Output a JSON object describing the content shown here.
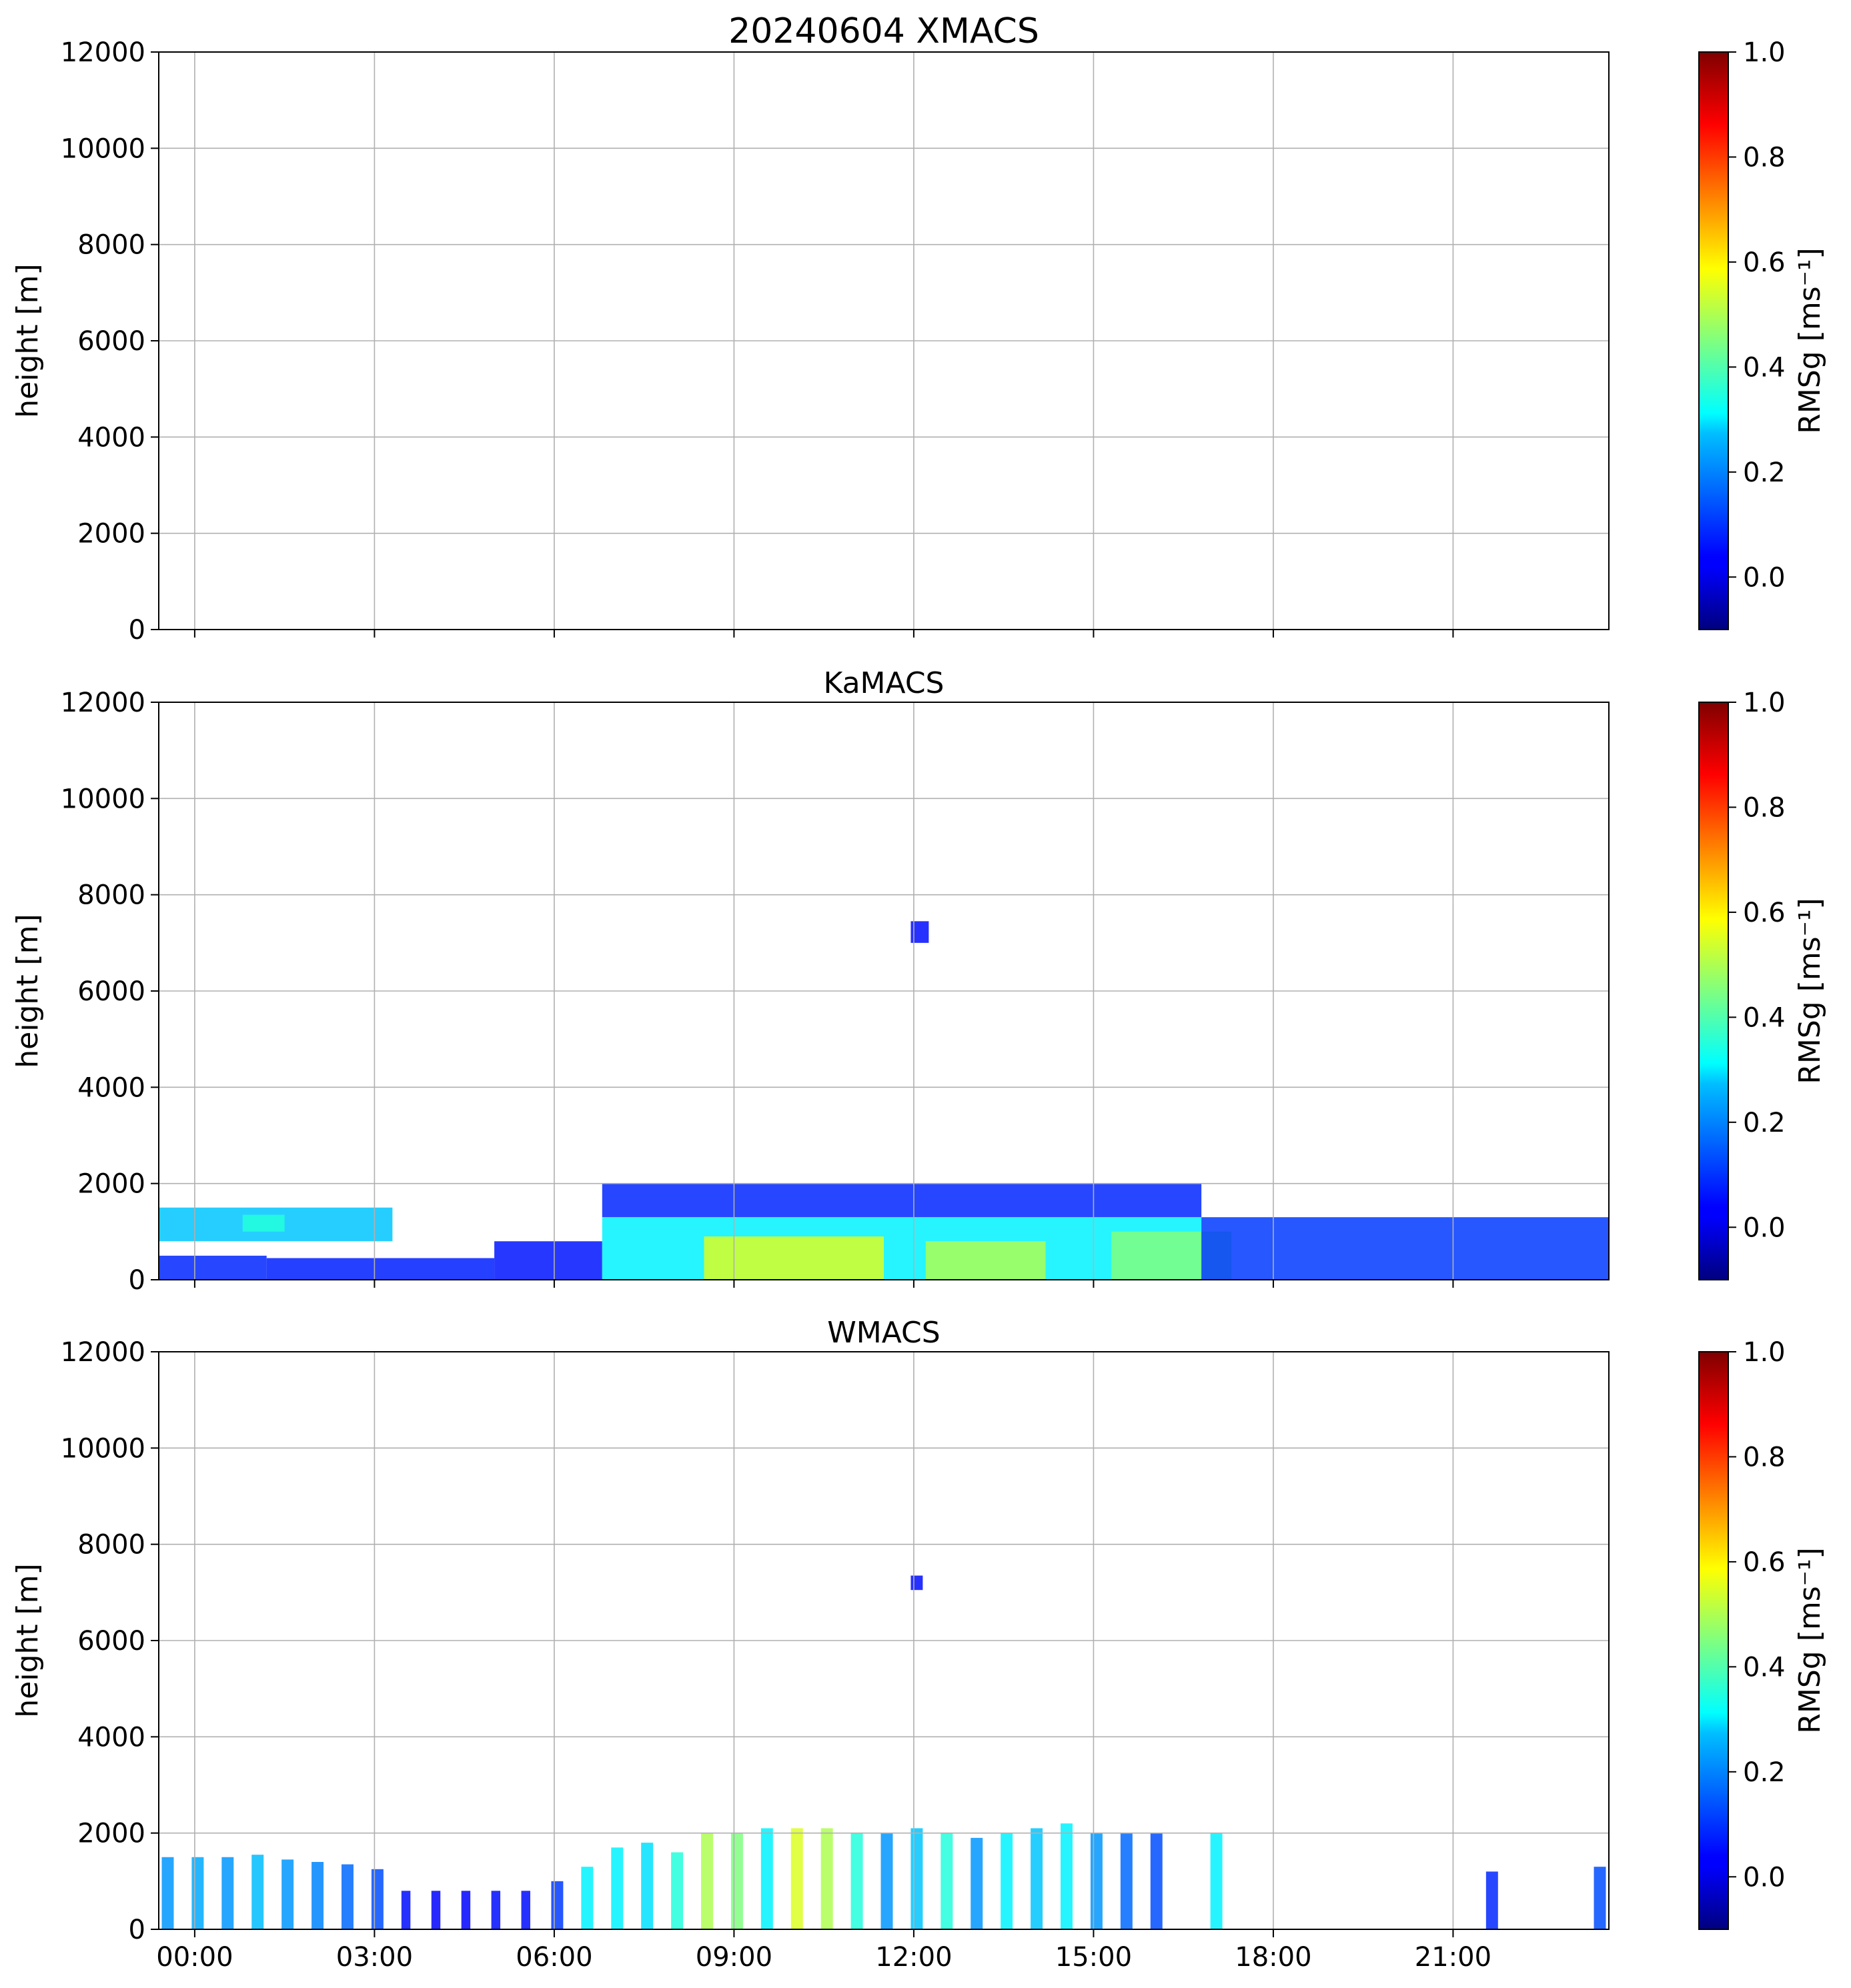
{
  "chart_data": [
    {
      "type": "heatmap",
      "title": "20240604 XMACS",
      "xlabel": "",
      "ylabel": "height [m]",
      "xlim": [
        -0.6,
        23.6
      ],
      "ylim": [
        0,
        12000
      ],
      "x_ticks": [
        0,
        3,
        6,
        9,
        12,
        15,
        18,
        21
      ],
      "x_tick_labels": [
        "00:00",
        "03:00",
        "06:00",
        "09:00",
        "12:00",
        "15:00",
        "18:00",
        "21:00"
      ],
      "show_x_tick_labels": false,
      "y_ticks": [
        0,
        2000,
        4000,
        6000,
        8000,
        10000,
        12000
      ],
      "y_tick_labels": [
        "0",
        "2000",
        "4000",
        "6000",
        "8000",
        "10000",
        "12000"
      ],
      "grid": true,
      "colorbar": {
        "label": "RMSg [ms⁻¹]",
        "range": [
          -0.1,
          1.0
        ],
        "ticks": [
          0.0,
          0.2,
          0.4,
          0.6,
          0.8,
          1.0
        ],
        "tick_labels": [
          "0.0",
          "0.2",
          "0.4",
          "0.6",
          "0.8",
          "1.0"
        ],
        "colormap": "jet"
      },
      "regions": []
    },
    {
      "type": "heatmap",
      "title": "KaMACS",
      "xlabel": "",
      "ylabel": "height [m]",
      "xlim": [
        -0.6,
        23.6
      ],
      "ylim": [
        0,
        12000
      ],
      "x_ticks": [
        0,
        3,
        6,
        9,
        12,
        15,
        18,
        21
      ],
      "x_tick_labels": [
        "00:00",
        "03:00",
        "06:00",
        "09:00",
        "12:00",
        "15:00",
        "18:00",
        "21:00"
      ],
      "show_x_tick_labels": false,
      "y_ticks": [
        0,
        2000,
        4000,
        6000,
        8000,
        10000,
        12000
      ],
      "y_tick_labels": [
        "0",
        "2000",
        "4000",
        "6000",
        "8000",
        "10000",
        "12000"
      ],
      "grid": true,
      "colorbar": {
        "label": "RMSg [ms⁻¹]",
        "range": [
          -0.1,
          1.0
        ],
        "ticks": [
          0.0,
          0.2,
          0.4,
          0.6,
          0.8,
          1.0
        ],
        "tick_labels": [
          "0.0",
          "0.2",
          "0.4",
          "0.6",
          "0.8",
          "1.0"
        ],
        "colormap": "jet"
      },
      "regions": [
        {
          "t0": -0.6,
          "t1": 3.3,
          "h0": 800,
          "h1": 1500,
          "value": 0.25
        },
        {
          "t0": 0.8,
          "t1": 1.5,
          "h0": 1000,
          "h1": 1350,
          "value": 0.35
        },
        {
          "t0": -0.6,
          "t1": 1.2,
          "h0": 0,
          "h1": 500,
          "value": 0.08
        },
        {
          "t0": 1.2,
          "t1": 5.0,
          "h0": 0,
          "h1": 450,
          "value": 0.07
        },
        {
          "t0": 5.0,
          "t1": 6.8,
          "h0": 0,
          "h1": 800,
          "value": 0.06
        },
        {
          "t0": 6.8,
          "t1": 16.8,
          "h0": 1300,
          "h1": 2000,
          "value": 0.08
        },
        {
          "t0": 6.8,
          "t1": 16.8,
          "h0": 0,
          "h1": 1300,
          "value": 0.3
        },
        {
          "t0": 8.5,
          "t1": 11.5,
          "h0": 0,
          "h1": 900,
          "value": 0.55
        },
        {
          "t0": 12.2,
          "t1": 14.2,
          "h0": 0,
          "h1": 800,
          "value": 0.5
        },
        {
          "t0": 15.3,
          "t1": 17.3,
          "h0": 0,
          "h1": 1000,
          "value": 0.45
        },
        {
          "t0": 16.8,
          "t1": 23.6,
          "h0": 0,
          "h1": 1300,
          "value": 0.1
        },
        {
          "t0": 11.95,
          "t1": 12.25,
          "h0": 7000,
          "h1": 7450,
          "value": 0.05
        }
      ]
    },
    {
      "type": "heatmap",
      "title": "WMACS",
      "xlabel": "",
      "ylabel": "height [m]",
      "xlim": [
        -0.6,
        23.6
      ],
      "ylim": [
        0,
        12000
      ],
      "x_ticks": [
        0,
        3,
        6,
        9,
        12,
        15,
        18,
        21
      ],
      "x_tick_labels": [
        "00:00",
        "03:00",
        "06:00",
        "09:00",
        "12:00",
        "15:00",
        "18:00",
        "21:00"
      ],
      "show_x_tick_labels": true,
      "y_ticks": [
        0,
        2000,
        4000,
        6000,
        8000,
        10000,
        12000
      ],
      "y_tick_labels": [
        "0",
        "2000",
        "4000",
        "6000",
        "8000",
        "10000",
        "12000"
      ],
      "grid": true,
      "colorbar": {
        "label": "RMSg [ms⁻¹]",
        "range": [
          -0.1,
          1.0
        ],
        "ticks": [
          0.0,
          0.2,
          0.4,
          0.6,
          0.8,
          1.0
        ],
        "tick_labels": [
          "0.0",
          "0.2",
          "0.4",
          "0.6",
          "0.8",
          "1.0"
        ],
        "colormap": "jet"
      },
      "regions": [
        {
          "t0": -0.55,
          "t1": -0.35,
          "h0": 0,
          "h1": 1500,
          "value": 0.2
        },
        {
          "t0": -0.05,
          "t1": 0.15,
          "h0": 0,
          "h1": 1500,
          "value": 0.22
        },
        {
          "t0": 0.45,
          "t1": 0.65,
          "h0": 0,
          "h1": 1500,
          "value": 0.2
        },
        {
          "t0": 0.95,
          "t1": 1.15,
          "h0": 0,
          "h1": 1550,
          "value": 0.24
        },
        {
          "t0": 1.45,
          "t1": 1.65,
          "h0": 0,
          "h1": 1450,
          "value": 0.2
        },
        {
          "t0": 1.95,
          "t1": 2.15,
          "h0": 0,
          "h1": 1400,
          "value": 0.18
        },
        {
          "t0": 2.45,
          "t1": 2.65,
          "h0": 0,
          "h1": 1350,
          "value": 0.15
        },
        {
          "t0": 2.95,
          "t1": 3.15,
          "h0": 0,
          "h1": 1250,
          "value": 0.12
        },
        {
          "t0": 3.45,
          "t1": 3.6,
          "h0": 0,
          "h1": 800,
          "value": 0.05
        },
        {
          "t0": 3.95,
          "t1": 4.1,
          "h0": 0,
          "h1": 800,
          "value": 0.04
        },
        {
          "t0": 4.45,
          "t1": 4.6,
          "h0": 0,
          "h1": 800,
          "value": 0.04
        },
        {
          "t0": 4.95,
          "t1": 5.1,
          "h0": 0,
          "h1": 800,
          "value": 0.05
        },
        {
          "t0": 5.45,
          "t1": 5.6,
          "h0": 0,
          "h1": 800,
          "value": 0.05
        },
        {
          "t0": 5.95,
          "t1": 6.15,
          "h0": 0,
          "h1": 1000,
          "value": 0.1
        },
        {
          "t0": 6.45,
          "t1": 6.65,
          "h0": 0,
          "h1": 1300,
          "value": 0.3
        },
        {
          "t0": 6.95,
          "t1": 7.15,
          "h0": 0,
          "h1": 1700,
          "value": 0.3
        },
        {
          "t0": 7.45,
          "t1": 7.65,
          "h0": 0,
          "h1": 1800,
          "value": 0.28
        },
        {
          "t0": 7.95,
          "t1": 8.15,
          "h0": 0,
          "h1": 1600,
          "value": 0.35
        },
        {
          "t0": 8.45,
          "t1": 8.65,
          "h0": 0,
          "h1": 2000,
          "value": 0.5
        },
        {
          "t0": 8.95,
          "t1": 9.15,
          "h0": 0,
          "h1": 2000,
          "value": 0.45
        },
        {
          "t0": 9.45,
          "t1": 9.65,
          "h0": 0,
          "h1": 2100,
          "value": 0.3
        },
        {
          "t0": 9.95,
          "t1": 10.15,
          "h0": 0,
          "h1": 2100,
          "value": 0.55
        },
        {
          "t0": 10.45,
          "t1": 10.65,
          "h0": 0,
          "h1": 2100,
          "value": 0.5
        },
        {
          "t0": 10.95,
          "t1": 11.15,
          "h0": 0,
          "h1": 2000,
          "value": 0.35
        },
        {
          "t0": 11.45,
          "t1": 11.65,
          "h0": 0,
          "h1": 2000,
          "value": 0.2
        },
        {
          "t0": 11.95,
          "t1": 12.15,
          "h0": 0,
          "h1": 2100,
          "value": 0.25
        },
        {
          "t0": 12.45,
          "t1": 12.65,
          "h0": 0,
          "h1": 2000,
          "value": 0.35
        },
        {
          "t0": 12.95,
          "t1": 13.15,
          "h0": 0,
          "h1": 1900,
          "value": 0.2
        },
        {
          "t0": 13.45,
          "t1": 13.65,
          "h0": 0,
          "h1": 2000,
          "value": 0.3
        },
        {
          "t0": 13.95,
          "t1": 14.15,
          "h0": 0,
          "h1": 2100,
          "value": 0.25
        },
        {
          "t0": 14.45,
          "t1": 14.65,
          "h0": 0,
          "h1": 2200,
          "value": 0.3
        },
        {
          "t0": 14.95,
          "t1": 15.15,
          "h0": 0,
          "h1": 2000,
          "value": 0.2
        },
        {
          "t0": 15.45,
          "t1": 15.65,
          "h0": 0,
          "h1": 2000,
          "value": 0.15
        },
        {
          "t0": 15.95,
          "t1": 16.15,
          "h0": 0,
          "h1": 2000,
          "value": 0.12
        },
        {
          "t0": 16.95,
          "t1": 17.15,
          "h0": 0,
          "h1": 2000,
          "value": 0.3
        },
        {
          "t0": 21.55,
          "t1": 21.75,
          "h0": 0,
          "h1": 1200,
          "value": 0.08
        },
        {
          "t0": 23.35,
          "t1": 23.55,
          "h0": 0,
          "h1": 1300,
          "value": 0.12
        },
        {
          "t0": 11.95,
          "t1": 12.15,
          "h0": 7050,
          "h1": 7350,
          "value": 0.05
        }
      ]
    }
  ]
}
